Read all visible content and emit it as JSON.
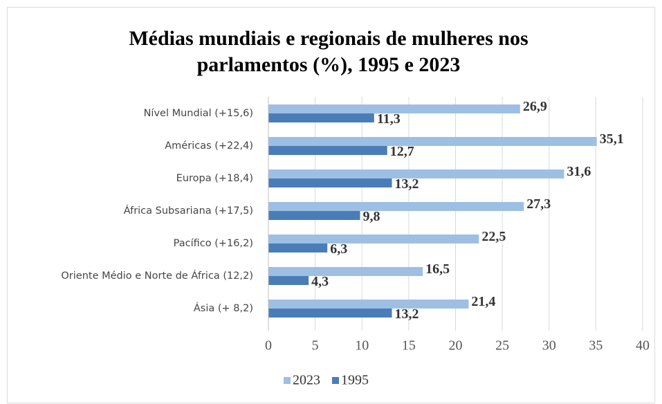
{
  "chart_data": {
    "type": "hbar",
    "title": [
      "Médias mundiais e regionais de mulheres nos",
      "parlamentos (%), 1995 e 2023"
    ],
    "categories": [
      "Nível Mundial (+15,6)",
      "Américas (+22,4)",
      "Europa (+18,4)",
      "África Subsariana (+17,5)",
      "Pacífico (+16,2)",
      "Oriente Médio e Norte de África (12,2)",
      "Ásia (+ 8,2)"
    ],
    "series": [
      {
        "name": "2023",
        "color": "#9dbfe3",
        "values": [
          26.9,
          35.1,
          31.6,
          27.3,
          22.5,
          16.5,
          21.4
        ],
        "value_labels": [
          "26,9",
          "35,1",
          "31,6",
          "27,3",
          "22,5",
          "16,5",
          "21,4"
        ]
      },
      {
        "name": "1995",
        "color": "#4a7db8",
        "values": [
          11.3,
          12.7,
          13.2,
          9.8,
          6.3,
          4.3,
          13.2
        ],
        "value_labels": [
          "11,3",
          "12,7",
          "13,2",
          "9,8",
          "6,3",
          "4,3",
          "13,2"
        ]
      }
    ],
    "xlim": [
      0,
      40
    ],
    "xticks": [
      0,
      5,
      10,
      15,
      20,
      25,
      30,
      35,
      40
    ],
    "grid": true,
    "legend": "bottom"
  }
}
